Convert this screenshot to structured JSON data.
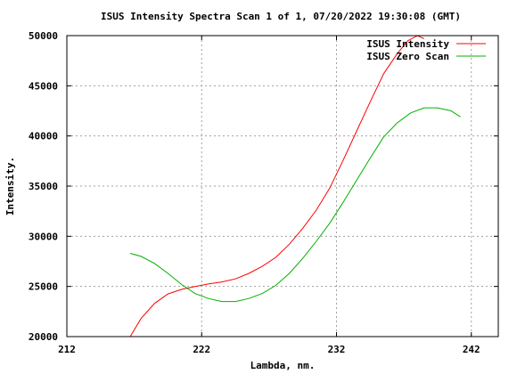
{
  "chart_data": {
    "type": "line",
    "title": "ISUS Intensity Spectra Scan 1 of 1, 07/20/2022 19:30:08 (GMT)",
    "xlabel": "Lambda, nm.",
    "ylabel": "Intensity.",
    "xlim": [
      212,
      244
    ],
    "ylim": [
      20000,
      50000
    ],
    "xticks": [
      212,
      222,
      232,
      242
    ],
    "yticks": [
      20000,
      25000,
      30000,
      35000,
      40000,
      45000,
      50000
    ],
    "grid": true,
    "legend_position": "top-right",
    "series": [
      {
        "name": "ISUS Intensity",
        "color": "#ff0000",
        "x": [
          216.7,
          217.5,
          218.5,
          219.5,
          220.5,
          221.5,
          222.5,
          223.5,
          224.5,
          225.5,
          226.5,
          227.5,
          228.5,
          229.5,
          230.5,
          231.5,
          232.5,
          233.5,
          234.5,
          235.5,
          236.5,
          237.3,
          238.0,
          238.5
        ],
        "y": [
          20000,
          21800,
          23300,
          24250,
          24700,
          25000,
          25250,
          25450,
          25750,
          26300,
          27000,
          27900,
          29200,
          30800,
          32600,
          34800,
          37600,
          40500,
          43400,
          46200,
          48200,
          49500,
          50000,
          49700
        ]
      },
      {
        "name": "ISUS Zero Scan",
        "color": "#00b000",
        "x": [
          216.7,
          217.5,
          218.5,
          219.5,
          220.5,
          221.5,
          222.5,
          223.5,
          224.5,
          225.5,
          226.5,
          227.5,
          228.5,
          229.5,
          230.5,
          231.5,
          232.5,
          233.5,
          234.5,
          235.5,
          236.5,
          237.5,
          238.5,
          239.5,
          240.5,
          241.2
        ],
        "y": [
          28300,
          28000,
          27300,
          26300,
          25200,
          24300,
          23800,
          23500,
          23500,
          23800,
          24300,
          25100,
          26300,
          27800,
          29500,
          31300,
          33400,
          35600,
          37800,
          39900,
          41300,
          42300,
          42800,
          42800,
          42500,
          41900
        ]
      }
    ]
  }
}
